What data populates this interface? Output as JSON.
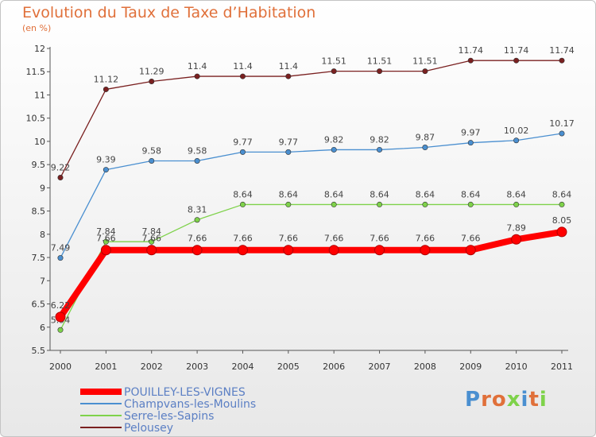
{
  "chart_data": {
    "type": "line",
    "title": "Evolution du Taux de Taxe d’Habitation",
    "unit": "(en %)",
    "categories": [
      "2000",
      "2001",
      "2002",
      "2003",
      "2004",
      "2005",
      "2006",
      "2007",
      "2008",
      "2009",
      "2010",
      "2011"
    ],
    "ylim": [
      5.5,
      12
    ],
    "yticks": [
      "5.5",
      "6",
      "6.5",
      "7",
      "7.5",
      "8",
      "8.5",
      "9",
      "9.5",
      "10",
      "10.5",
      "11",
      "11.5",
      "12"
    ],
    "grid": false,
    "legend_position": "bottom-left",
    "series": [
      {
        "name": "POUILLEY-LES-VIGNES",
        "color": "#ff0000",
        "values": [
          6.22,
          7.66,
          7.66,
          7.66,
          7.66,
          7.66,
          7.66,
          7.66,
          7.66,
          7.66,
          7.89,
          8.05
        ],
        "labels": [
          "6.22",
          "7.66",
          "7.66",
          "7.66",
          "7.66",
          "7.66",
          "7.66",
          "7.66",
          "7.66",
          "7.66",
          "7.89",
          "8.05"
        ]
      },
      {
        "name": "Champvans-les-Moulins",
        "color": "#4a8fd0",
        "values": [
          7.49,
          9.39,
          9.58,
          9.58,
          9.77,
          9.77,
          9.82,
          9.82,
          9.87,
          9.97,
          10.02,
          10.17
        ],
        "labels": [
          "7.49",
          "9.39",
          "9.58",
          "9.58",
          "9.77",
          "9.77",
          "9.82",
          "9.82",
          "9.87",
          "9.97",
          "10.02",
          "10.17"
        ]
      },
      {
        "name": "Serre-les-Sapins",
        "color": "#7ed24a",
        "values": [
          5.94,
          7.84,
          7.84,
          8.31,
          8.64,
          8.64,
          8.64,
          8.64,
          8.64,
          8.64,
          8.64,
          8.64
        ],
        "labels": [
          "5.94",
          "7.84",
          "7.84",
          "8.31",
          "8.64",
          "8.64",
          "8.64",
          "8.64",
          "8.64",
          "8.64",
          "8.64",
          "8.64"
        ]
      },
      {
        "name": "Pelousey",
        "color": "#7a2020",
        "values": [
          9.22,
          11.12,
          11.29,
          11.4,
          11.4,
          11.4,
          11.51,
          11.51,
          11.51,
          11.74,
          11.74,
          11.74
        ],
        "labels": [
          "9.22",
          "11.12",
          "11.29",
          "11.4",
          "11.4",
          "11.4",
          "11.51",
          "11.51",
          "11.51",
          "11.74",
          "11.74",
          "11.74"
        ]
      }
    ]
  },
  "logo": {
    "text": "Proxiti"
  }
}
